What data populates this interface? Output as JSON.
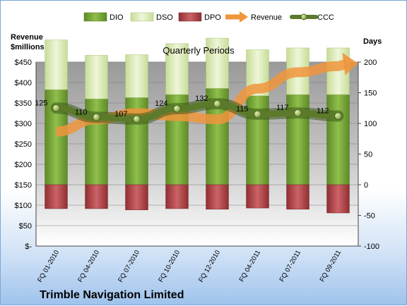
{
  "chart_data": {
    "type": "bar",
    "title": "Quarterly Periods",
    "company": "Trimble Navigation Limited",
    "left_axis": {
      "label_line1": "Revenue",
      "label_line2": "$millions",
      "ylim": [
        0,
        450
      ],
      "ticks": [
        "$-",
        "$50",
        "$100",
        "$150",
        "$200",
        "$250",
        "$300",
        "$350",
        "$400",
        "$450"
      ]
    },
    "right_axis": {
      "label": "Days",
      "ylim": [
        -100,
        200
      ],
      "ticks": [
        "-100",
        "-50",
        "0",
        "50",
        "100",
        "150",
        "200"
      ]
    },
    "categories": [
      "FQ 01-2010",
      "FQ 04-2010",
      "FQ 07-2010",
      "FQ 10-2010",
      "FQ 12-2010",
      "FQ 04-2011",
      "FQ 07-2011",
      "FQ 09-2011"
    ],
    "legend": {
      "placement": "top",
      "entries": [
        "DIO",
        "DSO",
        "DPO",
        "Revenue",
        "CCC"
      ]
    },
    "series": [
      {
        "name": "DIO",
        "axis": "days",
        "values": [
          155,
          140,
          142,
          147,
          157,
          145,
          147,
          147
        ],
        "color": "#78a53a"
      },
      {
        "name": "DSO",
        "axis": "days",
        "values": [
          81,
          71,
          70,
          83,
          82,
          75,
          76,
          76
        ],
        "color": "#dbeab8"
      },
      {
        "name": "DPO",
        "axis": "days",
        "values": [
          -39,
          -39,
          -41,
          -39,
          -40,
          -38,
          -40,
          -46
        ],
        "color": "#b84a4e"
      },
      {
        "name": "Revenue",
        "axis": "revenue",
        "values": [
          280,
          310,
          325,
          318,
          310,
          385,
          425,
          440
        ],
        "color": "#f0953c"
      },
      {
        "name": "CCC",
        "axis": "days",
        "values": [
          125,
          110,
          107,
          124,
          132,
          115,
          117,
          112
        ],
        "labels": [
          "125",
          "110",
          "107",
          "124",
          "132",
          "115",
          "117",
          "112"
        ],
        "color": "#5b7a2a"
      }
    ],
    "grid": true
  }
}
